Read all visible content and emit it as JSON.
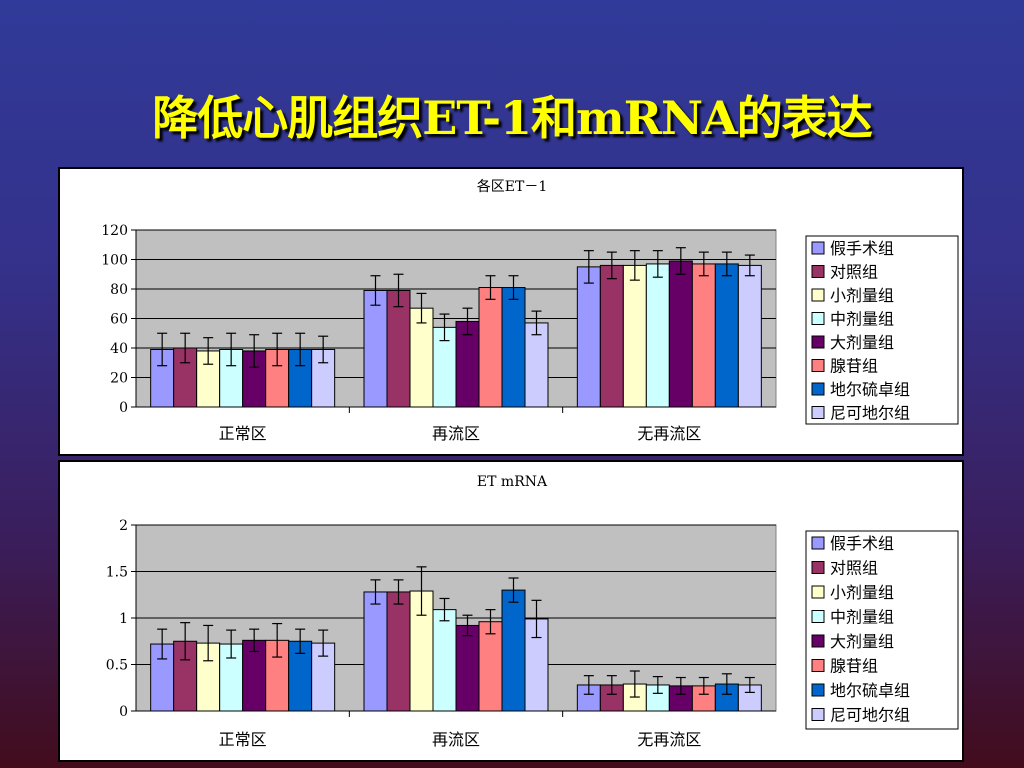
{
  "slide": {
    "title": "降低心肌组织ET-1和mRNA的表达"
  },
  "charts": [
    {
      "type": "bar",
      "title": "各区ET－1",
      "categories": [
        "正常区",
        "再流区",
        "无再流区"
      ],
      "ylim": [
        0,
        120
      ],
      "yticks": [
        "0",
        "20",
        "40",
        "60",
        "80",
        "100",
        "120"
      ],
      "ytick_values": [
        0,
        20,
        40,
        60,
        80,
        100,
        120
      ],
      "grid": true,
      "legend_position": "right",
      "series": [
        {
          "name": "假手术组",
          "color": "#9999ff",
          "values": [
            39,
            79,
            95
          ],
          "errors": [
            11,
            10,
            11
          ]
        },
        {
          "name": "对照组",
          "color": "#993366",
          "values": [
            40,
            79,
            96
          ],
          "errors": [
            10,
            11,
            9
          ]
        },
        {
          "name": "小剂量组",
          "color": "#ffffcc",
          "values": [
            38,
            67,
            96
          ],
          "errors": [
            9,
            10,
            10
          ]
        },
        {
          "name": "中剂量组",
          "color": "#ccffff",
          "values": [
            39,
            54,
            97
          ],
          "errors": [
            11,
            9,
            9
          ]
        },
        {
          "name": "大剂量组",
          "color": "#660066",
          "values": [
            38,
            58,
            99
          ],
          "errors": [
            11,
            9,
            9
          ]
        },
        {
          "name": "腺苷组",
          "color": "#ff8080",
          "values": [
            39,
            81,
            97
          ],
          "errors": [
            11,
            8,
            8
          ]
        },
        {
          "name": "地尔硫卓组",
          "color": "#0066cc",
          "values": [
            39,
            81,
            97
          ],
          "errors": [
            11,
            8,
            8
          ]
        },
        {
          "name": "尼可地尔组",
          "color": "#ccccff",
          "values": [
            39,
            57,
            96
          ],
          "errors": [
            9,
            8,
            7
          ]
        }
      ]
    },
    {
      "type": "bar",
      "title": "ET mRNA",
      "categories": [
        "正常区",
        "再流区",
        "无再流区"
      ],
      "ylim": [
        0,
        2
      ],
      "yticks": [
        "0",
        "0.5",
        "1",
        "1.5",
        "2"
      ],
      "ytick_values": [
        0,
        0.5,
        1,
        1.5,
        2
      ],
      "grid": true,
      "legend_position": "right",
      "series": [
        {
          "name": "假手术组",
          "color": "#9999ff",
          "values": [
            0.72,
            1.28,
            0.28
          ],
          "errors": [
            0.16,
            0.13,
            0.1
          ]
        },
        {
          "name": "对照组",
          "color": "#993366",
          "values": [
            0.75,
            1.28,
            0.28
          ],
          "errors": [
            0.2,
            0.13,
            0.1
          ]
        },
        {
          "name": "小剂量组",
          "color": "#ffffcc",
          "values": [
            0.73,
            1.29,
            0.29
          ],
          "errors": [
            0.19,
            0.26,
            0.14
          ]
        },
        {
          "name": "中剂量组",
          "color": "#ccffff",
          "values": [
            0.72,
            1.09,
            0.28
          ],
          "errors": [
            0.15,
            0.12,
            0.09
          ]
        },
        {
          "name": "大剂量组",
          "color": "#660066",
          "values": [
            0.76,
            0.92,
            0.27
          ],
          "errors": [
            0.12,
            0.11,
            0.09
          ]
        },
        {
          "name": "腺苷组",
          "color": "#ff8080",
          "values": [
            0.76,
            0.96,
            0.27
          ],
          "errors": [
            0.18,
            0.13,
            0.09
          ]
        },
        {
          "name": "地尔硫卓组",
          "color": "#0066cc",
          "values": [
            0.75,
            1.3,
            0.29
          ],
          "errors": [
            0.13,
            0.13,
            0.11
          ]
        },
        {
          "name": "尼可地尔组",
          "color": "#ccccff",
          "values": [
            0.73,
            0.99,
            0.28
          ],
          "errors": [
            0.14,
            0.2,
            0.08
          ]
        }
      ]
    }
  ]
}
